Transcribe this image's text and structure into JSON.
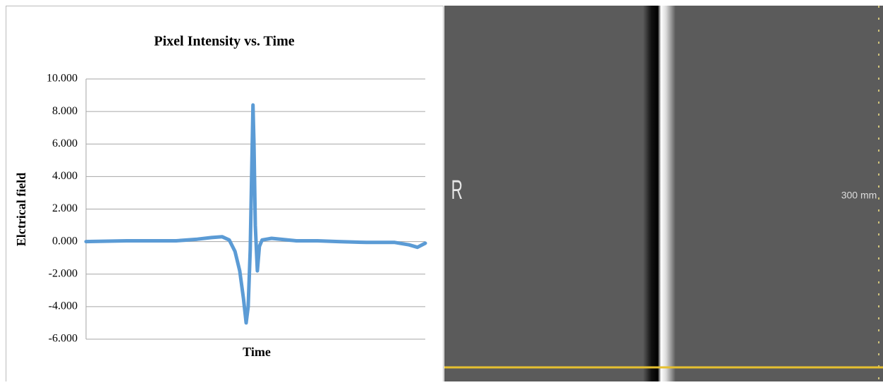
{
  "chart_data": {
    "type": "line",
    "title": "Pixel Intensity  vs. Time",
    "x_label": "Time",
    "y_label": "Elctrical field",
    "x": [
      0,
      12,
      26.6,
      32.8,
      37,
      40.1,
      42.2,
      43.9,
      45.3,
      46.4,
      47.2,
      47.8,
      48.4,
      48.9,
      49.2,
      49.5,
      49.9,
      50.5,
      51.1,
      51.9,
      54.7,
      62,
      68.2,
      74.4,
      82.7,
      91,
      95.2,
      97.7,
      100
    ],
    "values": [
      0,
      0.05,
      0.05,
      0.15,
      0.25,
      0.3,
      0.1,
      -0.6,
      -1.8,
      -3.5,
      -5.0,
      -4.0,
      -0.5,
      5,
      8.4,
      6,
      1,
      -1.8,
      -0.3,
      0.1,
      0.2,
      0.05,
      0.05,
      0,
      -0.05,
      -0.05,
      -0.2,
      -0.35,
      -0.1
    ],
    "color": "#5b9bd5",
    "xlim": [
      0,
      100
    ],
    "ylim": [
      -6,
      10
    ],
    "yticks": [
      {
        "value": -6,
        "label": "-6.000"
      },
      {
        "value": -4,
        "label": "-4.000"
      },
      {
        "value": -2,
        "label": "-2.000"
      },
      {
        "value": 0,
        "label": "0.000"
      },
      {
        "value": 2,
        "label": "2.000"
      },
      {
        "value": 4,
        "label": "4.000"
      },
      {
        "value": 6,
        "label": "6.000"
      },
      {
        "value": 8,
        "label": "8.000"
      },
      {
        "value": 10,
        "label": "10.000"
      }
    ],
    "grid": true
  },
  "image": {
    "labels": [
      "R",
      "300 mm"
    ]
  }
}
